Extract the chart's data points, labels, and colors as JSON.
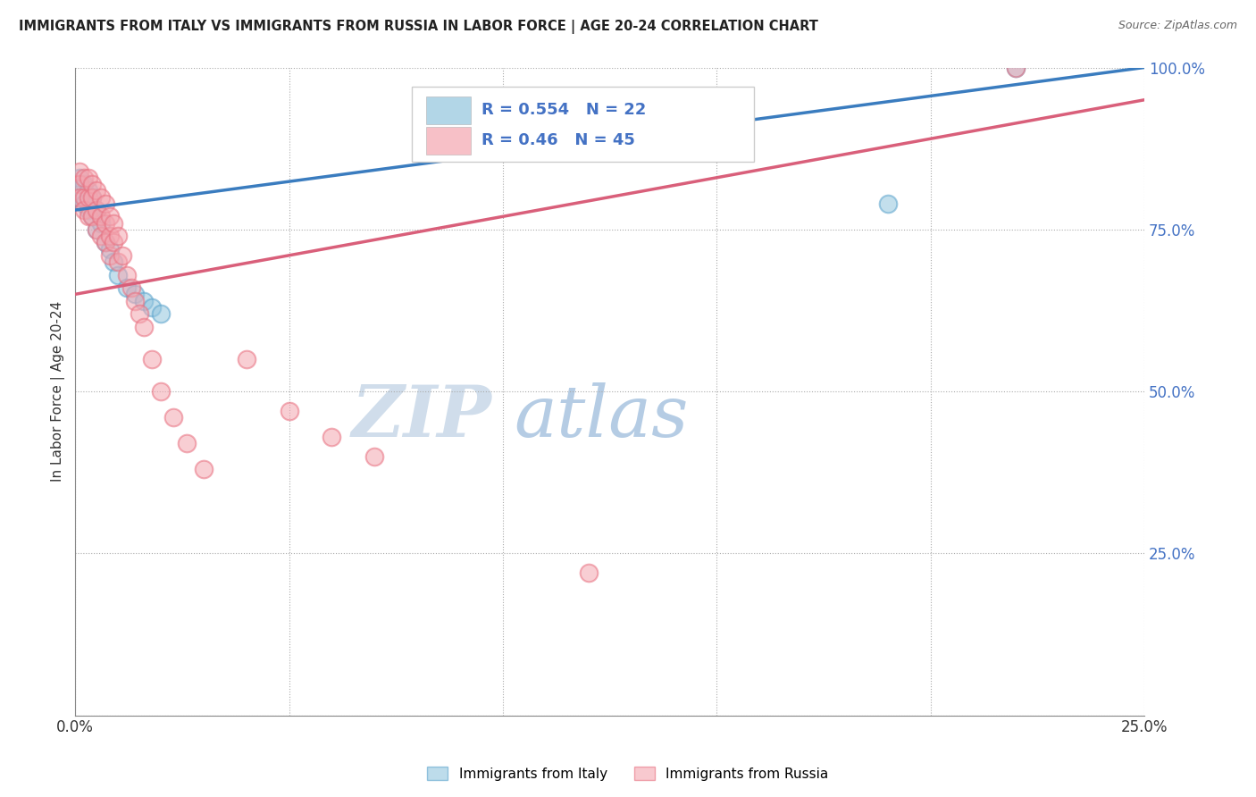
{
  "title": "IMMIGRANTS FROM ITALY VS IMMIGRANTS FROM RUSSIA IN LABOR FORCE | AGE 20-24 CORRELATION CHART",
  "source": "Source: ZipAtlas.com",
  "ylabel": "In Labor Force | Age 20-24",
  "xmin": 0.0,
  "xmax": 0.25,
  "ymin": 0.0,
  "ymax": 1.0,
  "yticks": [
    0.0,
    0.25,
    0.5,
    0.75,
    1.0
  ],
  "ytick_labels": [
    "",
    "25.0%",
    "50.0%",
    "75.0%",
    "100.0%"
  ],
  "xticks": [
    0.0,
    0.05,
    0.1,
    0.15,
    0.2,
    0.25
  ],
  "xtick_labels": [
    "0.0%",
    "",
    "",
    "",
    "",
    "25.0%"
  ],
  "italy_R": 0.554,
  "italy_N": 22,
  "russia_R": 0.46,
  "russia_N": 45,
  "italy_color": "#92c5de",
  "russia_color": "#f4a6b0",
  "italy_edge_color": "#5ba3cc",
  "russia_edge_color": "#e87080",
  "italy_line_color": "#3a7cbf",
  "russia_line_color": "#d95f7a",
  "watermark_zip_color": "#d0dce8",
  "watermark_atlas_color": "#b8cfe8",
  "legend_label_italy": "Immigrants from Italy",
  "legend_label_russia": "Immigrants from Russia",
  "italy_x": [
    0.001,
    0.001,
    0.002,
    0.002,
    0.003,
    0.003,
    0.004,
    0.004,
    0.005,
    0.005,
    0.006,
    0.007,
    0.008,
    0.009,
    0.01,
    0.012,
    0.014,
    0.016,
    0.018,
    0.02,
    0.19,
    0.22
  ],
  "italy_y": [
    0.83,
    0.8,
    0.82,
    0.79,
    0.81,
    0.78,
    0.8,
    0.77,
    0.78,
    0.75,
    0.76,
    0.73,
    0.72,
    0.7,
    0.68,
    0.66,
    0.65,
    0.64,
    0.63,
    0.62,
    0.79,
    1.0
  ],
  "russia_x": [
    0.001,
    0.001,
    0.001,
    0.002,
    0.002,
    0.002,
    0.003,
    0.003,
    0.003,
    0.004,
    0.004,
    0.004,
    0.005,
    0.005,
    0.005,
    0.006,
    0.006,
    0.006,
    0.007,
    0.007,
    0.007,
    0.008,
    0.008,
    0.008,
    0.009,
    0.009,
    0.01,
    0.01,
    0.011,
    0.012,
    0.013,
    0.014,
    0.015,
    0.016,
    0.018,
    0.02,
    0.023,
    0.026,
    0.03,
    0.04,
    0.05,
    0.06,
    0.07,
    0.12,
    0.22
  ],
  "russia_y": [
    0.84,
    0.82,
    0.8,
    0.83,
    0.8,
    0.78,
    0.83,
    0.8,
    0.77,
    0.82,
    0.8,
    0.77,
    0.81,
    0.78,
    0.75,
    0.8,
    0.77,
    0.74,
    0.79,
    0.76,
    0.73,
    0.77,
    0.74,
    0.71,
    0.76,
    0.73,
    0.74,
    0.7,
    0.71,
    0.68,
    0.66,
    0.64,
    0.62,
    0.6,
    0.55,
    0.5,
    0.46,
    0.42,
    0.38,
    0.55,
    0.47,
    0.43,
    0.4,
    0.22,
    1.0
  ]
}
